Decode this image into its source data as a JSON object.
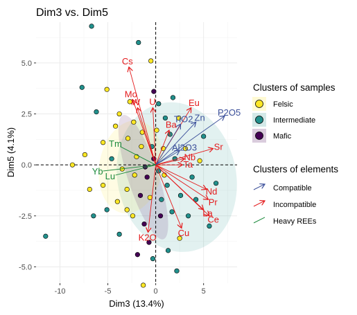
{
  "chart_data": {
    "type": "scatter",
    "title": "Dim3 vs. Dim5",
    "xlabel": "Dim3 (13.4%)",
    "ylabel": "Dim5 (4.1%)",
    "xlim": [
      -12.5,
      8.5
    ],
    "ylim": [
      -5.8,
      7.0
    ],
    "x_ticks": [
      -10,
      -5,
      0,
      5
    ],
    "y_ticks": [
      -5.0,
      -2.5,
      0.0,
      2.5,
      5.0
    ],
    "x_tick_labels": [
      "-10",
      "-5",
      "0",
      "5"
    ],
    "y_tick_labels": [
      "-5.0",
      "-2.5",
      "0.0",
      "2.5",
      "5.0"
    ],
    "grid": true,
    "reference_lines": {
      "x": 0,
      "y": 0,
      "style": "dashed"
    },
    "legend_position": "right",
    "sample_clusters": {
      "title": "Clusters of samples",
      "items": [
        {
          "label": "Felsic",
          "color": "#FDE725"
        },
        {
          "label": "Intermediate",
          "color": "#21908C"
        },
        {
          "label": "Mafic",
          "color": "#440154"
        }
      ]
    },
    "element_clusters": {
      "title": "Clusters of elements",
      "items": [
        {
          "label": "Compatible",
          "color": "#3B4F9A"
        },
        {
          "label": "Incompatible",
          "color": "#E41A1C"
        },
        {
          "label": "Heavy REEs",
          "color": "#1B8A3C"
        }
      ]
    },
    "ellipses": [
      {
        "cluster": "Intermediate",
        "cx": 2.2,
        "cy": -0.6,
        "rx": 6.2,
        "ry": 3.7,
        "angle": -12,
        "color": "#21908C"
      },
      {
        "cluster": "Felsic",
        "cx": -2.6,
        "cy": -0.1,
        "rx": 3.3,
        "ry": 2.3,
        "angle": 10,
        "color": "#FDE725"
      },
      {
        "cluster": "Mafic",
        "cx": -1.3,
        "cy": -0.6,
        "rx": 1.6,
        "ry": 3.2,
        "angle": -18,
        "color": "#440154"
      }
    ],
    "loadings": [
      {
        "label": "Cs",
        "x": -2.8,
        "y": 4.8,
        "group": "Incompatible"
      },
      {
        "label": "Mo",
        "x": -2.4,
        "y": 3.2,
        "group": "Incompatible"
      },
      {
        "label": "W",
        "x": -1.9,
        "y": 2.8,
        "group": "Incompatible"
      },
      {
        "label": "U",
        "x": -0.3,
        "y": 2.8,
        "group": "Incompatible"
      },
      {
        "label": "Eu",
        "x": 3.7,
        "y": 2.8,
        "group": "Incompatible"
      },
      {
        "label": "Ba",
        "x": 1.4,
        "y": 1.7,
        "group": "Incompatible"
      },
      {
        "label": "Sr",
        "x": 6.0,
        "y": 0.8,
        "group": "Incompatible"
      },
      {
        "label": "Nd",
        "x": 5.3,
        "y": -1.2,
        "group": "Incompatible"
      },
      {
        "label": "Pr",
        "x": 5.5,
        "y": -1.7,
        "group": "Incompatible"
      },
      {
        "label": "La",
        "x": 5.0,
        "y": -2.2,
        "group": "Incompatible"
      },
      {
        "label": "Ce",
        "x": 5.6,
        "y": -2.5,
        "group": "Incompatible"
      },
      {
        "label": "Ta",
        "x": 2.8,
        "y": 0.0,
        "group": "Incompatible"
      },
      {
        "label": "Nb",
        "x": 3.0,
        "y": 0.3,
        "group": "Incompatible"
      },
      {
        "label": "K2O",
        "x": -0.8,
        "y": -3.3,
        "group": "Incompatible"
      },
      {
        "label": "Cu",
        "x": 2.7,
        "y": -3.1,
        "group": "Incompatible"
      },
      {
        "label": "TiO2",
        "x": 2.6,
        "y": 2.0,
        "group": "Compatible"
      },
      {
        "label": "Zn",
        "x": 4.2,
        "y": 2.1,
        "group": "Compatible"
      },
      {
        "label": "P2O5",
        "x": 7.2,
        "y": 2.4,
        "group": "Compatible"
      },
      {
        "label": "Al2O3",
        "x": 2.5,
        "y": 0.7,
        "group": "Compatible"
      },
      {
        "label": "Tm",
        "x": -3.7,
        "y": 0.9,
        "group": "Heavy REEs"
      },
      {
        "label": "Yb",
        "x": -5.5,
        "y": -0.3,
        "group": "Heavy REEs"
      },
      {
        "label": "Lu",
        "x": -4.2,
        "y": -0.5,
        "group": "Heavy REEs"
      }
    ],
    "samples": [
      {
        "x": -6.7,
        "y": 6.8,
        "cluster": "Intermediate"
      },
      {
        "x": -1.8,
        "y": 6.0,
        "cluster": "Intermediate"
      },
      {
        "x": -0.5,
        "y": 5.1,
        "cluster": "Felsic"
      },
      {
        "x": -11.5,
        "y": -3.5,
        "cluster": "Intermediate"
      },
      {
        "x": -8.7,
        "y": 0.0,
        "cluster": "Felsic"
      },
      {
        "x": -7.4,
        "y": 0.5,
        "cluster": "Felsic"
      },
      {
        "x": -5.5,
        "y": 1.1,
        "cluster": "Felsic"
      },
      {
        "x": -6.2,
        "y": 2.6,
        "cluster": "Intermediate"
      },
      {
        "x": -5.1,
        "y": 3.7,
        "cluster": "Felsic"
      },
      {
        "x": -4.2,
        "y": 1.9,
        "cluster": "Felsic"
      },
      {
        "x": -3.5,
        "y": -0.2,
        "cluster": "Felsic"
      },
      {
        "x": -2.9,
        "y": 1.3,
        "cluster": "Felsic"
      },
      {
        "x": -2.0,
        "y": 0.4,
        "cluster": "Felsic"
      },
      {
        "x": -1.4,
        "y": 1.6,
        "cluster": "Felsic"
      },
      {
        "x": -3.0,
        "y": -1.2,
        "cluster": "Felsic"
      },
      {
        "x": -4.0,
        "y": -1.8,
        "cluster": "Felsic"
      },
      {
        "x": -5.5,
        "y": -1.0,
        "cluster": "Felsic"
      },
      {
        "x": -6.5,
        "y": -2.5,
        "cluster": "Intermediate"
      },
      {
        "x": -5.1,
        "y": -2.2,
        "cluster": "Intermediate"
      },
      {
        "x": -3.8,
        "y": -3.4,
        "cluster": "Intermediate"
      },
      {
        "x": -2.4,
        "y": -2.5,
        "cluster": "Felsic"
      },
      {
        "x": -1.2,
        "y": -2.9,
        "cluster": "Mafic"
      },
      {
        "x": -1.6,
        "y": -1.5,
        "cluster": "Mafic"
      },
      {
        "x": -0.9,
        "y": -0.6,
        "cluster": "Mafic"
      },
      {
        "x": -0.4,
        "y": 0.9,
        "cluster": "Intermediate"
      },
      {
        "x": 0.3,
        "y": -0.3,
        "cluster": "Intermediate"
      },
      {
        "x": 0.8,
        "y": 0.8,
        "cluster": "Felsic"
      },
      {
        "x": 1.5,
        "y": 1.5,
        "cluster": "Intermediate"
      },
      {
        "x": 1.2,
        "y": -1.0,
        "cluster": "Intermediate"
      },
      {
        "x": 2.0,
        "y": 0.3,
        "cluster": "Intermediate"
      },
      {
        "x": 2.6,
        "y": -1.5,
        "cluster": "Intermediate"
      },
      {
        "x": 3.1,
        "y": 0.8,
        "cluster": "Felsic"
      },
      {
        "x": 3.8,
        "y": -0.6,
        "cluster": "Intermediate"
      },
      {
        "x": 4.2,
        "y": -1.7,
        "cluster": "Intermediate"
      },
      {
        "x": 5.0,
        "y": 1.4,
        "cluster": "Intermediate"
      },
      {
        "x": 5.6,
        "y": -3.0,
        "cluster": "Intermediate"
      },
      {
        "x": 3.4,
        "y": -2.5,
        "cluster": "Intermediate"
      },
      {
        "x": 2.5,
        "y": -3.6,
        "cluster": "Felsic"
      },
      {
        "x": 2.2,
        "y": -5.2,
        "cluster": "Intermediate"
      },
      {
        "x": 1.3,
        "y": -4.2,
        "cluster": "Intermediate"
      },
      {
        "x": -0.3,
        "y": -4.6,
        "cluster": "Intermediate"
      },
      {
        "x": -1.9,
        "y": -4.4,
        "cluster": "Mafic"
      },
      {
        "x": -0.7,
        "y": -3.8,
        "cluster": "Mafic"
      },
      {
        "x": 0.5,
        "y": -2.5,
        "cluster": "Mafic"
      },
      {
        "x": 1.0,
        "y": 2.3,
        "cluster": "Intermediate"
      },
      {
        "x": 0.3,
        "y": 3.0,
        "cluster": "Intermediate"
      },
      {
        "x": 1.8,
        "y": 3.3,
        "cluster": "Intermediate"
      },
      {
        "x": -0.2,
        "y": 3.6,
        "cluster": "Mafic"
      },
      {
        "x": -2.7,
        "y": 3.1,
        "cluster": "Felsic"
      },
      {
        "x": -3.8,
        "y": 2.5,
        "cluster": "Felsic"
      },
      {
        "x": -4.6,
        "y": 0.3,
        "cluster": "Intermediate"
      },
      {
        "x": -2.2,
        "y": -0.5,
        "cluster": "Felsic"
      },
      {
        "x": -1.5,
        "y": 0.9,
        "cluster": "Felsic"
      },
      {
        "x": -0.6,
        "y": -1.6,
        "cluster": "Felsic"
      },
      {
        "x": 0.6,
        "y": -1.7,
        "cluster": "Intermediate"
      },
      {
        "x": 1.7,
        "y": -2.3,
        "cluster": "Intermediate"
      },
      {
        "x": 4.6,
        "y": 0.2,
        "cluster": "Felsic"
      },
      {
        "x": 6.3,
        "y": -0.9,
        "cluster": "Intermediate"
      },
      {
        "x": -7.7,
        "y": 3.8,
        "cluster": "Intermediate"
      },
      {
        "x": -6.9,
        "y": -1.2,
        "cluster": "Felsic"
      },
      {
        "x": -2.3,
        "y": 2.1,
        "cluster": "Felsic"
      },
      {
        "x": 0.1,
        "y": 1.7,
        "cluster": "Felsic"
      },
      {
        "x": 2.4,
        "y": 2.3,
        "cluster": "Felsic"
      },
      {
        "x": 0.9,
        "y": -0.5,
        "cluster": "Felsic"
      },
      {
        "x": -1.1,
        "y": -0.1,
        "cluster": "Mafic"
      },
      {
        "x": -0.2,
        "y": 0.3,
        "cluster": "Mafic"
      },
      {
        "x": -1.3,
        "y": -5.9,
        "cluster": "Felsic"
      },
      {
        "x": -3.0,
        "y": -2.2,
        "cluster": "Felsic"
      }
    ]
  }
}
